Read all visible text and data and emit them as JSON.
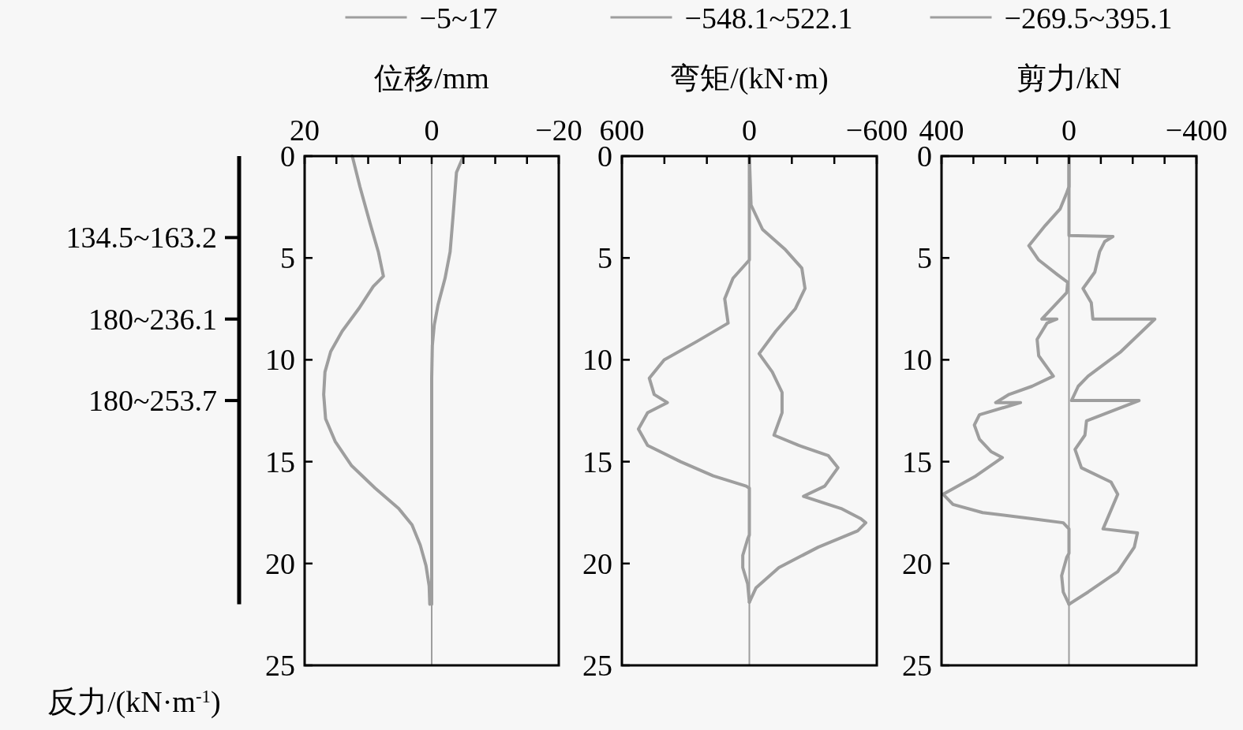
{
  "chart_data": [
    {
      "type": "line",
      "xlabel": "位移/mm",
      "xlim": [
        20,
        -20
      ],
      "xticks": [
        20,
        {
          "value": 15,
          "label": null
        },
        {
          "value": 10,
          "label": null
        },
        {
          "value": 5,
          "label": null
        },
        0,
        {
          "value": -5,
          "label": null
        },
        {
          "value": -10,
          "label": null
        },
        {
          "value": -15,
          "label": null
        },
        {
          "value": -20,
          "label": "−20"
        }
      ],
      "ylim": [
        25,
        0
      ],
      "yticks": [
        0,
        5,
        10,
        15,
        20,
        25
      ],
      "legend": "top",
      "series": [
        {
          "name": "−5~17",
          "color": "#9e9e9e",
          "x": [
            12.5,
            11.3,
            9.7,
            8.4,
            7.6,
            9.2,
            11.5,
            14.1,
            15.9,
            16.8,
            17,
            16.7,
            15.2,
            12.6,
            8.9,
            5.2,
            3.1,
            1.8,
            0.9,
            0.4,
            0.3
          ],
          "values": [
            0,
            1.5,
            3.3,
            4.7,
            5.9,
            6.4,
            7.5,
            8.6,
            9.6,
            10.6,
            11.7,
            12.9,
            14,
            15.2,
            16.3,
            17.3,
            18.1,
            19.1,
            20.1,
            21.1,
            22
          ]
        },
        {
          "color": "#9e9e9e",
          "x": [
            -5,
            -3.9,
            -3.4,
            -2.9,
            -2.1,
            -1,
            -0.4,
            -0.1,
            0,
            0
          ],
          "values": [
            0,
            0.8,
            2.8,
            4.7,
            6,
            7.3,
            8.3,
            9.3,
            10.9,
            22
          ]
        }
      ],
      "ref_lines": [
        {
          "axis": "x",
          "value": 0,
          "color": "#9e9e9e"
        }
      ],
      "annotations": [
        "134.5~163.2",
        "180~236.1",
        "180~253.7",
        "反力/(kN·m$^{-1}$)"
      ]
    },
    {
      "type": "line",
      "xlabel": "弯矩/(kN·m)",
      "xlim": [
        600,
        -600
      ],
      "xticks": [
        600,
        {
          "value": 400,
          "label": null
        },
        {
          "value": 200,
          "label": null
        },
        0,
        {
          "value": -200,
          "label": null
        },
        {
          "value": -400,
          "label": null
        },
        {
          "value": -600,
          "label": "−600"
        }
      ],
      "ylim": [
        25,
        0
      ],
      "yticks": [
        0,
        5,
        10,
        15,
        20,
        25
      ],
      "legend": "top",
      "series": [
        {
          "name": "−548.1~522.1",
          "color": "#9e9e9e",
          "x": [
            0,
            0,
            77,
            116,
            100,
            247,
            401,
            471,
            448,
            386,
            479,
            522.1,
            479,
            324,
            170,
            15,
            0,
            0,
            8,
            31,
            31,
            8,
            0
          ],
          "values": [
            0,
            5.1,
            6,
            7,
            8.2,
            9.1,
            10,
            10.9,
            11.7,
            12.1,
            12.6,
            13.4,
            14.2,
            15,
            15.7,
            16.2,
            16.3,
            18.6,
            18.8,
            19.6,
            20.2,
            21,
            21.9
          ]
        },
        {
          "color": "#9e9e9e",
          "x": [
            0,
            -8,
            -62,
            -170,
            -247,
            -262,
            -216,
            -124,
            -46,
            -108,
            -154,
            -154,
            -116,
            -232,
            -371,
            -417,
            -355,
            -255,
            -432,
            -525,
            -548.1,
            -510,
            -324,
            -139,
            -31,
            0
          ],
          "values": [
            0,
            2.4,
            3.6,
            4.6,
            5.5,
            6.5,
            7.5,
            8.6,
            9.7,
            10.6,
            11.6,
            12.6,
            13.7,
            14.2,
            14.7,
            15.3,
            16.2,
            16.7,
            17.3,
            17.8,
            18,
            18.4,
            19.2,
            20.2,
            21.2,
            21.9
          ]
        }
      ],
      "ref_lines": [
        {
          "axis": "x",
          "value": 0,
          "color": "#9e9e9e"
        }
      ]
    },
    {
      "type": "line",
      "xlabel": "剪力/kN",
      "xlim": [
        400,
        -400
      ],
      "xticks": [
        400,
        {
          "value": 300,
          "label": null
        },
        {
          "value": 200,
          "label": null
        },
        {
          "value": 100,
          "label": null
        },
        0,
        {
          "value": -100,
          "label": null
        },
        {
          "value": -200,
          "label": null
        },
        {
          "value": -300,
          "label": null
        },
        {
          "value": -400,
          "label": "−400"
        }
      ],
      "ylim": [
        25,
        0
      ],
      "yticks": [
        0,
        5,
        10,
        15,
        20,
        25
      ],
      "legend": "top",
      "series": [
        {
          "name": "−269.5~395.1",
          "color": "#9e9e9e",
          "x": [
            0,
            0,
            7,
            28,
            74,
            126,
            95,
            38,
            4,
            7,
            43,
            85,
            38,
            69,
            100,
            95,
            49,
            116,
            188,
            230,
            152,
            281,
            297,
            281,
            245,
            209,
            292,
            395.1,
            364,
            271,
            116,
            18,
            0,
            0,
            7,
            23,
            18,
            0
          ],
          "values": [
            0,
            1.5,
            1.8,
            2.6,
            3.4,
            4.4,
            5.1,
            5.8,
            6.2,
            6.7,
            7.3,
            8,
            8,
            8.2,
            9,
            9.8,
            10.8,
            11.3,
            11.7,
            12.1,
            12.1,
            12.7,
            13.2,
            13.9,
            14.5,
            14.8,
            15.7,
            16.6,
            17.1,
            17.5,
            17.8,
            18,
            18.3,
            19.5,
            19.7,
            20.6,
            21.4,
            22
          ]
        },
        {
          "color": "#9e9e9e",
          "x": [
            0,
            0,
            -138,
            -112,
            -96,
            -81,
            -44,
            -70,
            -75,
            -269.5,
            -163,
            -60,
            -29,
            -8,
            -220,
            -55,
            -50,
            -19,
            -39,
            -132,
            -153,
            -107,
            -215,
            -205,
            -153,
            -60,
            0
          ],
          "values": [
            0,
            3.9,
            3.95,
            4.2,
            4.7,
            5.7,
            6.5,
            7.2,
            8,
            8,
            9.6,
            10.8,
            11.3,
            12,
            12,
            13,
            13.7,
            14.4,
            15.3,
            16,
            16.6,
            18.3,
            18.5,
            19.2,
            20.4,
            21.4,
            22
          ]
        }
      ],
      "ref_lines": [
        {
          "axis": "x",
          "value": 0,
          "color": "#9e9e9e"
        }
      ]
    }
  ]
}
